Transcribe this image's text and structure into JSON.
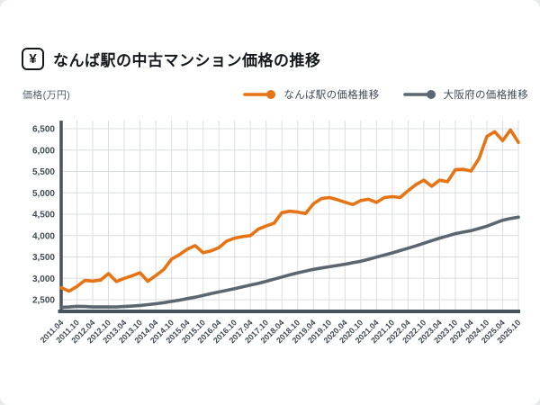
{
  "header": {
    "title": "なんば駅の中古マンション価格の推移",
    "icon": "yen-icon",
    "icon_glyph": "¥"
  },
  "chart_data": {
    "type": "line",
    "title": "なんば駅の中古マンション価格の推移",
    "ylabel": "価格(万円)",
    "ylim": [
      2500,
      6500
    ],
    "y_ticks": [
      2500,
      3000,
      3500,
      4000,
      4500,
      5000,
      5500,
      6000,
      6500
    ],
    "grid": true,
    "legend_position": "top-right",
    "x_tick_labels": [
      "2011.04",
      "2011.10",
      "2012.04",
      "2012.10",
      "2013.04",
      "2013.10",
      "2014.04",
      "2014.10",
      "2015.04",
      "2015.10",
      "2016.04",
      "2016.10",
      "2017.04",
      "2017.10",
      "2018.04",
      "2018.10",
      "2019.04",
      "2019.10",
      "2020.04",
      "2020.10",
      "2021.04",
      "2021.10",
      "2022.04",
      "2022.10",
      "2023.04",
      "2023.10",
      "2024.04",
      "2024.10",
      "2025.04",
      "2025.10"
    ],
    "points_per_tick": 2,
    "series": [
      {
        "name": "なんば駅の価格推移",
        "color": "#E77414",
        "values": [
          2780,
          2700,
          2810,
          2950,
          2935,
          2960,
          3110,
          2925,
          3000,
          3060,
          3130,
          2930,
          3065,
          3205,
          3450,
          3555,
          3680,
          3765,
          3600,
          3640,
          3720,
          3870,
          3940,
          3975,
          4000,
          4150,
          4225,
          4290,
          4535,
          4570,
          4550,
          4515,
          4745,
          4865,
          4890,
          4840,
          4780,
          4725,
          4820,
          4850,
          4775,
          4890,
          4910,
          4890,
          5050,
          5190,
          5295,
          5155,
          5295,
          5260,
          5540,
          5550,
          5510,
          5800,
          6320,
          6430,
          6220,
          6470,
          6180
        ]
      },
      {
        "name": "大阪府の価格推移",
        "color": "#5A6770",
        "values": [
          2320,
          2330,
          2345,
          2340,
          2330,
          2330,
          2330,
          2330,
          2340,
          2350,
          2365,
          2385,
          2405,
          2430,
          2460,
          2490,
          2525,
          2560,
          2600,
          2640,
          2680,
          2720,
          2760,
          2800,
          2840,
          2880,
          2930,
          2980,
          3030,
          3080,
          3130,
          3170,
          3210,
          3240,
          3270,
          3300,
          3330,
          3365,
          3400,
          3445,
          3495,
          3545,
          3595,
          3650,
          3705,
          3760,
          3820,
          3880,
          3940,
          3990,
          4045,
          4080,
          4115,
          4165,
          4220,
          4290,
          4360,
          4400,
          4430
        ]
      }
    ],
    "colors": {
      "axis": "#47545F",
      "gridline": "#DADDDF",
      "tick_text": "#3F4A54"
    }
  }
}
